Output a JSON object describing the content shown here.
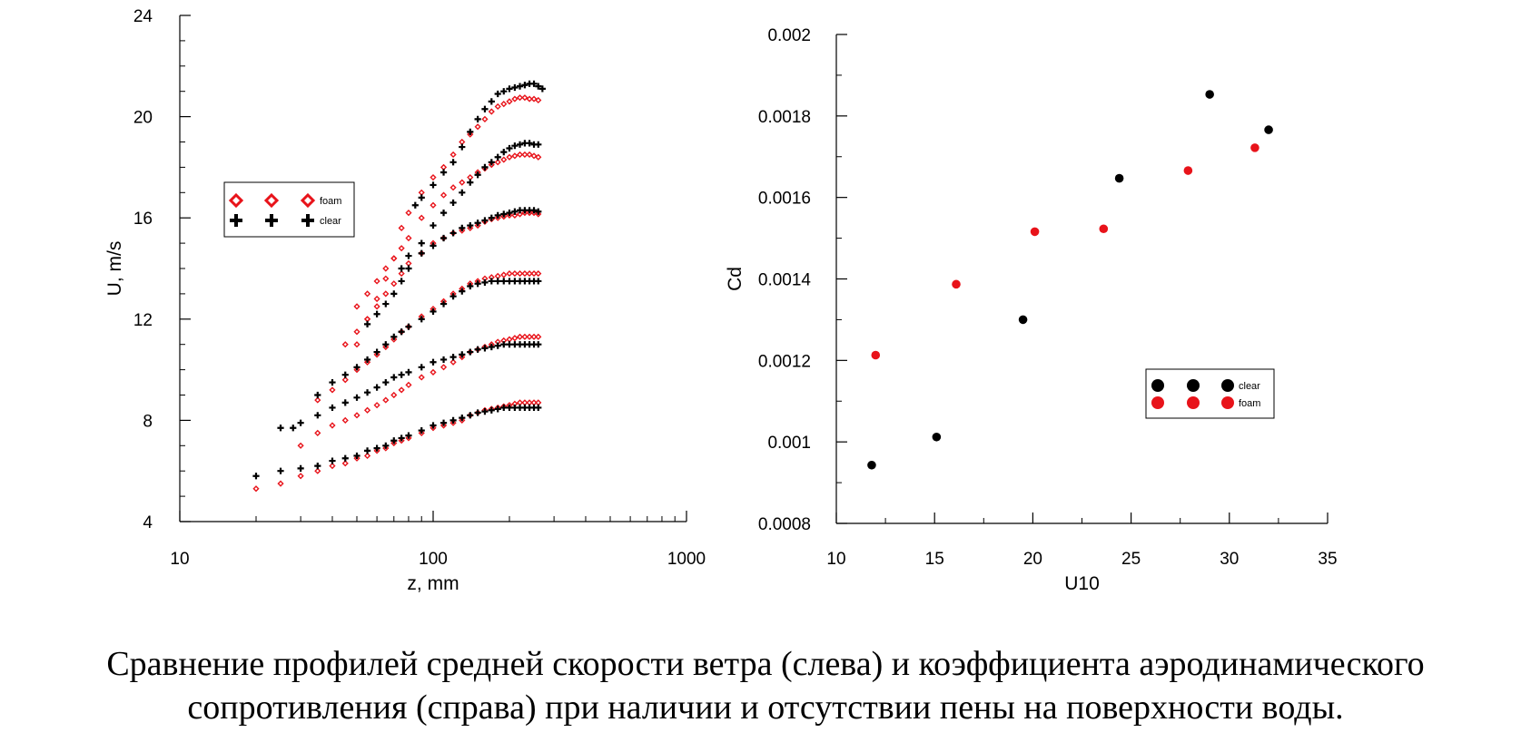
{
  "colors": {
    "foam": "#e8131a",
    "clear": "#000000",
    "axis": "#000000"
  },
  "caption": {
    "line1": "Сравнение профилей средней скорости ветра (слева) и коэффициента аэродинамического",
    "line2": "сопротивления (справа) при наличии и отсутствии пены на поверхности воды."
  },
  "chart_data": [
    {
      "type": "scatter",
      "xlabel": "z, mm",
      "ylabel": "U, m/s",
      "xscale": "log",
      "xlim": [
        10,
        1000
      ],
      "ylim": [
        4,
        24
      ],
      "xticks": [
        10,
        100,
        1000
      ],
      "yticks": [
        4,
        8,
        12,
        16,
        20,
        24
      ],
      "legend": {
        "position": "upper-left",
        "entries": [
          "foam",
          "clear"
        ]
      },
      "series": [
        {
          "name": "foam",
          "marker": "diamond",
          "profiles": [
            {
              "x": [
                20,
                25,
                30,
                35,
                40,
                45,
                50,
                55,
                60,
                65,
                70,
                75,
                80,
                90,
                100,
                110,
                120,
                130,
                140,
                150,
                160,
                170,
                180,
                190,
                200,
                210,
                220,
                230,
                240,
                250,
                260
              ],
              "y": [
                5.3,
                5.5,
                5.8,
                6.0,
                6.2,
                6.3,
                6.5,
                6.6,
                6.8,
                6.9,
                7.1,
                7.2,
                7.3,
                7.5,
                7.7,
                7.8,
                7.9,
                8.0,
                8.2,
                8.3,
                8.4,
                8.45,
                8.5,
                8.55,
                8.6,
                8.65,
                8.7,
                8.7,
                8.7,
                8.7,
                8.7
              ]
            },
            {
              "x": [
                30,
                35,
                40,
                45,
                50,
                55,
                60,
                65,
                70,
                75,
                80,
                90,
                100,
                110,
                120,
                130,
                140,
                150,
                160,
                170,
                180,
                190,
                200,
                210,
                220,
                230,
                240,
                250,
                260
              ],
              "y": [
                7.0,
                7.5,
                7.8,
                8.0,
                8.2,
                8.4,
                8.6,
                8.8,
                9.0,
                9.2,
                9.4,
                9.7,
                9.9,
                10.1,
                10.3,
                10.5,
                10.7,
                10.8,
                10.9,
                11.0,
                11.1,
                11.15,
                11.2,
                11.25,
                11.3,
                11.3,
                11.3,
                11.3,
                11.3
              ]
            },
            {
              "x": [
                35,
                40,
                45,
                50,
                55,
                60,
                65,
                70,
                75,
                80,
                90,
                100,
                110,
                120,
                130,
                140,
                150,
                160,
                170,
                180,
                190,
                200,
                210,
                220,
                230,
                240,
                250,
                260
              ],
              "y": [
                8.8,
                9.2,
                9.6,
                10.0,
                10.3,
                10.6,
                10.9,
                11.2,
                11.5,
                11.7,
                12.1,
                12.4,
                12.7,
                13.0,
                13.2,
                13.4,
                13.5,
                13.6,
                13.65,
                13.7,
                13.75,
                13.8,
                13.8,
                13.8,
                13.8,
                13.8,
                13.8,
                13.8
              ]
            },
            {
              "x": [
                45,
                50,
                55,
                60,
                65,
                70,
                75,
                80,
                90,
                100,
                110,
                120,
                130,
                140,
                150,
                160,
                170,
                180,
                190,
                200,
                210,
                220,
                230,
                240,
                250,
                260
              ],
              "y": [
                11.0,
                11.5,
                12.0,
                12.5,
                13.0,
                13.4,
                13.8,
                14.2,
                14.6,
                15.0,
                15.2,
                15.4,
                15.5,
                15.6,
                15.7,
                15.85,
                15.95,
                16.0,
                16.05,
                16.1,
                16.1,
                16.15,
                16.2,
                16.2,
                16.2,
                16.15
              ]
            },
            {
              "x": [
                50,
                55,
                60,
                65,
                70,
                75,
                80,
                90,
                100,
                110,
                120,
                130,
                140,
                150,
                160,
                170,
                180,
                190,
                200,
                210,
                220,
                230,
                240,
                250,
                260
              ],
              "y": [
                12.5,
                13.0,
                13.5,
                14.0,
                14.4,
                14.8,
                15.2,
                16.0,
                16.5,
                16.9,
                17.2,
                17.4,
                17.6,
                17.8,
                17.95,
                18.1,
                18.2,
                18.3,
                18.4,
                18.45,
                18.5,
                18.5,
                18.5,
                18.45,
                18.4
              ]
            },
            {
              "x": [
                50,
                55,
                60,
                65,
                70,
                75,
                80,
                90,
                100,
                110,
                120,
                130,
                140,
                150,
                160,
                170,
                180,
                190,
                200,
                210,
                220,
                230,
                240,
                250,
                260
              ],
              "y": [
                11.0,
                12.0,
                12.8,
                13.6,
                14.4,
                15.6,
                16.2,
                17.0,
                17.6,
                18.0,
                18.5,
                19.0,
                19.3,
                19.6,
                19.9,
                20.2,
                20.4,
                20.5,
                20.6,
                20.7,
                20.75,
                20.75,
                20.7,
                20.7,
                20.65
              ]
            }
          ]
        },
        {
          "name": "clear",
          "marker": "cross",
          "profiles": [
            {
              "x": [
                20,
                25,
                30,
                35,
                40,
                45,
                50,
                55,
                60,
                65,
                70,
                75,
                80,
                90,
                100,
                110,
                120,
                130,
                140,
                150,
                160,
                170,
                180,
                190,
                200,
                210,
                220,
                230,
                240,
                250,
                260
              ],
              "y": [
                5.8,
                6.0,
                6.1,
                6.2,
                6.4,
                6.5,
                6.6,
                6.8,
                6.9,
                7.0,
                7.2,
                7.3,
                7.4,
                7.6,
                7.8,
                7.9,
                8.0,
                8.1,
                8.2,
                8.3,
                8.35,
                8.4,
                8.45,
                8.5,
                8.5,
                8.5,
                8.5,
                8.5,
                8.5,
                8.5,
                8.5
              ]
            },
            {
              "x": [
                30,
                35,
                40,
                45,
                50,
                55,
                60,
                65,
                70,
                75,
                80,
                90,
                100,
                110,
                120,
                130,
                140,
                150,
                160,
                170,
                180,
                190,
                200,
                210,
                220,
                230,
                240,
                250,
                260
              ],
              "y": [
                7.9,
                8.2,
                8.5,
                8.7,
                8.9,
                9.1,
                9.3,
                9.5,
                9.7,
                9.8,
                9.9,
                10.1,
                10.3,
                10.4,
                10.5,
                10.6,
                10.7,
                10.8,
                10.85,
                10.9,
                10.95,
                11.0,
                11.0,
                11.0,
                11.0,
                11.0,
                11.0,
                11.0,
                11.0
              ]
            },
            {
              "x": [
                35,
                40,
                45,
                50,
                55,
                60,
                65,
                70,
                75,
                80,
                90,
                100,
                110,
                120,
                130,
                140,
                150,
                160,
                170,
                180,
                190,
                200,
                210,
                220,
                230,
                240,
                250,
                260
              ],
              "y": [
                9.0,
                9.5,
                9.8,
                10.1,
                10.4,
                10.7,
                11.0,
                11.3,
                11.5,
                11.7,
                12.0,
                12.3,
                12.6,
                12.9,
                13.1,
                13.3,
                13.4,
                13.45,
                13.5,
                13.5,
                13.5,
                13.5,
                13.5,
                13.5,
                13.5,
                13.5,
                13.5,
                13.5
              ]
            },
            {
              "x": [
                25,
                28,
                55,
                60,
                65,
                70,
                75,
                80,
                90,
                100,
                110,
                120,
                130,
                140,
                150,
                160,
                170,
                180,
                190,
                200,
                210,
                220,
                230,
                240,
                250,
                260
              ],
              "y": [
                7.7,
                7.7,
                11.8,
                12.2,
                12.6,
                13.0,
                13.5,
                14.0,
                14.6,
                14.9,
                15.2,
                15.4,
                15.6,
                15.7,
                15.8,
                15.9,
                16.0,
                16.1,
                16.15,
                16.2,
                16.25,
                16.3,
                16.3,
                16.3,
                16.3,
                16.25
              ]
            },
            {
              "x": [
                75,
                80,
                90,
                100,
                110,
                120,
                130,
                140,
                150,
                160,
                170,
                180,
                190,
                200,
                210,
                220,
                230,
                240,
                250,
                260
              ],
              "y": [
                14.0,
                14.5,
                15.0,
                15.7,
                16.2,
                16.6,
                17.0,
                17.4,
                17.7,
                18.0,
                18.2,
                18.4,
                18.6,
                18.75,
                18.85,
                18.9,
                18.95,
                18.95,
                18.9,
                18.9
              ]
            },
            {
              "x": [
                85,
                90,
                100,
                110,
                120,
                130,
                140,
                150,
                160,
                170,
                180,
                190,
                200,
                210,
                220,
                230,
                240,
                250,
                260,
                270
              ],
              "y": [
                16.5,
                16.8,
                17.3,
                17.8,
                18.2,
                18.8,
                19.4,
                19.9,
                20.3,
                20.6,
                20.9,
                21.0,
                21.1,
                21.15,
                21.2,
                21.25,
                21.3,
                21.3,
                21.2,
                21.1
              ]
            }
          ]
        }
      ]
    },
    {
      "type": "scatter",
      "xlabel": "U10",
      "ylabel": "Cd",
      "xlim": [
        10,
        35
      ],
      "ylim": [
        0.0008,
        0.002
      ],
      "xticks": [
        10,
        15,
        20,
        25,
        30,
        35
      ],
      "yticks": [
        "0.0008",
        "0.001",
        "0.0012",
        "0.0014",
        "0.0016",
        "0.0018",
        "0.002"
      ],
      "legend": {
        "position": "lower-right",
        "entries": [
          "clear",
          "foam"
        ]
      },
      "series": [
        {
          "name": "clear",
          "x": [
            11.8,
            15.1,
            19.5,
            24.4,
            29.0,
            32.0
          ],
          "y": [
            0.000943,
            0.001012,
            0.0013,
            0.001647,
            0.001853,
            0.001766
          ]
        },
        {
          "name": "foam",
          "x": [
            12.0,
            16.1,
            20.1,
            23.6,
            27.9,
            31.3
          ],
          "y": [
            0.001213,
            0.001387,
            0.001516,
            0.001523,
            0.001666,
            0.001722
          ]
        }
      ]
    }
  ]
}
